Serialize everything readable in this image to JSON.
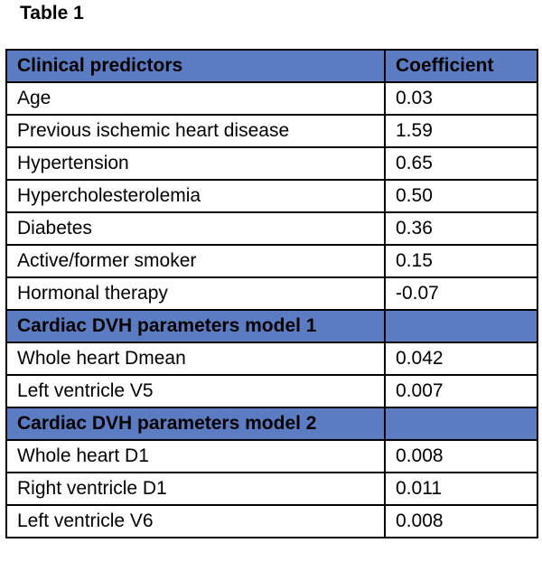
{
  "caption": "Table 1",
  "table": {
    "header": [
      "Clinical predictors",
      "Coefficient"
    ],
    "rows": [
      {
        "type": "data",
        "label": "Age",
        "value": "0.03"
      },
      {
        "type": "data",
        "label": "Previous ischemic heart disease",
        "value": "1.59"
      },
      {
        "type": "data",
        "label": "Hypertension",
        "value": "0.65"
      },
      {
        "type": "data",
        "label": "Hypercholesterolemia",
        "value": "0.50"
      },
      {
        "type": "data",
        "label": "Diabetes",
        "value": "0.36"
      },
      {
        "type": "data",
        "label": "Active/former smoker",
        "value": "0.15"
      },
      {
        "type": "data",
        "label": "Hormonal therapy",
        "value": "-0.07"
      },
      {
        "type": "section",
        "label": "Cardiac DVH parameters model 1",
        "value": ""
      },
      {
        "type": "data",
        "label": "Whole heart Dmean",
        "value": "0.042"
      },
      {
        "type": "data",
        "label": "Left ventricle V5",
        "value": "0.007"
      },
      {
        "type": "section",
        "label": "Cardiac DVH parameters model 2",
        "value": ""
      },
      {
        "type": "data",
        "label": "Whole heart D1",
        "value": "0.008"
      },
      {
        "type": "data",
        "label": "Right ventricle D1",
        "value": "0.011"
      },
      {
        "type": "data",
        "label": "Left ventricle V6",
        "value": "0.008"
      }
    ]
  },
  "colors": {
    "header_fill": "#5b7cc2",
    "border": "#000000"
  }
}
